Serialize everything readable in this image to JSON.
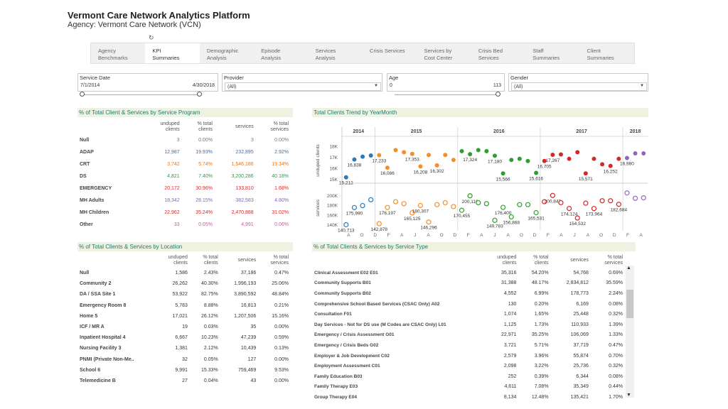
{
  "header": {
    "title": "Vermont Care Network Analytics Platform",
    "subtitle": "Agency: Vermont Care Network (VCN)",
    "reload_glyph": "↻"
  },
  "tabs": [
    {
      "label": "Agency\nBenchmarks",
      "active": false
    },
    {
      "label": "KPI\nSummaries",
      "active": true
    },
    {
      "label": "Demographic\nAnalysis",
      "active": false
    },
    {
      "label": "Episode\nAnalysis",
      "active": false
    },
    {
      "label": "Services\nAnalysis",
      "active": false
    },
    {
      "label": "Crisis Services",
      "active": false
    },
    {
      "label": "Services by\nCost Center",
      "active": false
    },
    {
      "label": "Crisis Bed\nServices",
      "active": false
    },
    {
      "label": "Staff\nSummaries",
      "active": false
    },
    {
      "label": "Client\nSummaries",
      "active": false
    }
  ],
  "filters": {
    "service_date": {
      "label": "Service Date",
      "start": "7/1/2014",
      "end": "4/30/2018"
    },
    "provider": {
      "label": "Provider",
      "value": "(All)"
    },
    "age": {
      "label": "Age",
      "min": "0",
      "max": "113"
    },
    "gender": {
      "label": "Gender",
      "value": "(All)"
    }
  },
  "program_table": {
    "title": "% of Total Client & Services by Service Program",
    "headers": [
      "unduped\nclients",
      "% total\nclients",
      "services",
      "% total\nservices"
    ],
    "rows": [
      {
        "label": "Null",
        "cells": [
          "3",
          "0.00%",
          "3",
          "0.00%"
        ],
        "color": "c-gray"
      },
      {
        "label": "ADAP",
        "cells": [
          "12,987",
          "19.93%",
          "232,895",
          "2.92%"
        ],
        "color": "c-blue"
      },
      {
        "label": "CRT",
        "cells": [
          "3,742",
          "5.74%",
          "1,546,186",
          "19.34%"
        ],
        "color": "c-orange"
      },
      {
        "label": "DS",
        "cells": [
          "4,821",
          "7.40%",
          "3,200,286",
          "40.18%"
        ],
        "color": "c-green"
      },
      {
        "label": "EMERGENCY",
        "cells": [
          "20,172",
          "30.96%",
          "133,810",
          "1.68%"
        ],
        "color": "c-red"
      },
      {
        "label": "MH Adults",
        "cells": [
          "18,342",
          "28.15%",
          "382,583",
          "4.80%"
        ],
        "color": "c-purple"
      },
      {
        "label": "MH Children",
        "cells": [
          "22,962",
          "35.24%",
          "2,470,888",
          "31.02%"
        ],
        "color": "c-red"
      },
      {
        "label": "Other",
        "cells": [
          "33",
          "0.05%",
          "4,991",
          "0.06%"
        ],
        "color": "c-pink"
      }
    ]
  },
  "location_table": {
    "title": "% of Total Clients & Services by Location",
    "headers": [
      "unduped\nclients",
      "% total\nclients",
      "services",
      "% total\nservices"
    ],
    "rows": [
      {
        "label": "Null",
        "cells": [
          "1,586",
          "2.43%",
          "37,186",
          "0.47%"
        ]
      },
      {
        "label": "Community 2",
        "cells": [
          "26,262",
          "40.30%",
          "1,996,193",
          "25.06%"
        ]
      },
      {
        "label": "DA / SSA Site 1",
        "cells": [
          "53,922",
          "82.75%",
          "3,890,592",
          "48.84%"
        ]
      },
      {
        "label": "Emergency Room 8",
        "cells": [
          "5,783",
          "8.88%",
          "16,813",
          "0.21%"
        ]
      },
      {
        "label": "Home 5",
        "cells": [
          "17,021",
          "26.12%",
          "1,207,506",
          "15.16%"
        ]
      },
      {
        "label": "ICF / MR A",
        "cells": [
          "19",
          "0.03%",
          "35",
          "0.00%"
        ]
      },
      {
        "label": "Inpatient Hospital 4",
        "cells": [
          "6,667",
          "10.23%",
          "47,239",
          "0.59%"
        ]
      },
      {
        "label": "Nursing Facility 3",
        "cells": [
          "1,381",
          "2.12%",
          "10,439",
          "0.13%"
        ]
      },
      {
        "label": "PNMI (Private Non-Me..",
        "cells": [
          "32",
          "0.05%",
          "127",
          "0.00%"
        ]
      },
      {
        "label": "School 6",
        "cells": [
          "9,991",
          "15.33%",
          "759,469",
          "9.53%"
        ]
      },
      {
        "label": "Telemedicine B",
        "cells": [
          "27",
          "0.04%",
          "43",
          "0.00%"
        ]
      }
    ]
  },
  "type_table": {
    "title": "% of Total Clients & Services by Service Type",
    "headers": [
      "unduped\nclients",
      "% total\nclients",
      "services",
      "% total\nservices"
    ],
    "rows": [
      {
        "label": "Clinical Assessment E02 E01",
        "cells": [
          "35,316",
          "54.20%",
          "54,768",
          "0.69%"
        ]
      },
      {
        "label": "Community Supports B01",
        "cells": [
          "31,388",
          "48.17%",
          "2,834,812",
          "35.59%"
        ]
      },
      {
        "label": "Community Supports B02",
        "cells": [
          "4,552",
          "6.99%",
          "178,773",
          "2.24%"
        ]
      },
      {
        "label": "Comprehensive School Based Services (CSAC Only) A02",
        "cells": [
          "130",
          "0.20%",
          "6,169",
          "0.08%"
        ]
      },
      {
        "label": "Consultation F01",
        "cells": [
          "1,074",
          "1.65%",
          "25,448",
          "0.32%"
        ]
      },
      {
        "label": "Day Services - Not for DS use (M Codes are CSAC Only) L01",
        "cells": [
          "1,125",
          "1.73%",
          "110,933",
          "1.39%"
        ]
      },
      {
        "label": "Emergency / Crisis Assessment G01",
        "cells": [
          "22,971",
          "35.25%",
          "106,069",
          "1.33%"
        ]
      },
      {
        "label": "Emergency / Crisis Beds G02",
        "cells": [
          "3,721",
          "5.71%",
          "37,719",
          "0.47%"
        ]
      },
      {
        "label": "Employer & Job Development C02",
        "cells": [
          "2,579",
          "3.96%",
          "55,874",
          "0.70%"
        ]
      },
      {
        "label": "Employment Assessment C01",
        "cells": [
          "2,098",
          "3.22%",
          "25,736",
          "0.32%"
        ]
      },
      {
        "label": "Family Education B03",
        "cells": [
          "252",
          "0.39%",
          "6,344",
          "0.08%"
        ]
      },
      {
        "label": "Family Therapy E03",
        "cells": [
          "4,611",
          "7.08%",
          "35,349",
          "0.44%"
        ]
      },
      {
        "label": "Group Therapy E04",
        "cells": [
          "8,134",
          "12.48%",
          "135,421",
          "1.70%"
        ]
      }
    ]
  },
  "chart_data": {
    "type": "scatter",
    "title": "Total Clients Trend by YearMonth",
    "years": [
      "2014",
      "2015",
      "2016",
      "2017",
      "2018"
    ],
    "month_ticks": [
      "A",
      "O",
      "D",
      "F",
      "A",
      "J",
      "A",
      "O",
      "D",
      "F",
      "A",
      "J",
      "A",
      "O",
      "D",
      "F",
      "A",
      "J",
      "A",
      "O",
      "D",
      "F",
      "A"
    ],
    "colors": {
      "2014": "#2f79b5",
      "2015": "#f28e2b",
      "2016": "#2ca02c",
      "2017": "#d62728",
      "2018": "#9467bd"
    },
    "top_panel": {
      "ylabel": "unduped clients",
      "yticks": [
        "18K",
        "17K",
        "16K",
        "15K"
      ],
      "ylim": [
        15000,
        18500
      ],
      "points": [
        {
          "i": 0,
          "y": 15212,
          "label": "15,212"
        },
        {
          "i": 1,
          "y": 16838,
          "label": "16,838"
        },
        {
          "i": 2,
          "y": 17100
        },
        {
          "i": 3,
          "y": 17200
        },
        {
          "i": 4,
          "y": 17233,
          "label": "17,233"
        },
        {
          "i": 5,
          "y": 16086,
          "label": "16,086"
        },
        {
          "i": 6,
          "y": 17700
        },
        {
          "i": 7,
          "y": 17500
        },
        {
          "i": 8,
          "y": 17353,
          "label": "17,353"
        },
        {
          "i": 9,
          "y": 16208,
          "label": "16,208"
        },
        {
          "i": 10,
          "y": 17250
        },
        {
          "i": 11,
          "y": 16302,
          "label": "16,302"
        },
        {
          "i": 12,
          "y": 17250
        },
        {
          "i": 13,
          "y": 16800
        },
        {
          "i": 14,
          "y": 17600
        },
        {
          "i": 15,
          "y": 17324,
          "label": "17,324"
        },
        {
          "i": 16,
          "y": 17700
        },
        {
          "i": 17,
          "y": 17600
        },
        {
          "i": 18,
          "y": 17180,
          "label": "17,180"
        },
        {
          "i": 19,
          "y": 15566,
          "label": "15,566"
        },
        {
          "i": 20,
          "y": 16800
        },
        {
          "i": 21,
          "y": 16900
        },
        {
          "i": 22,
          "y": 16700
        },
        {
          "i": 23,
          "y": 15616,
          "label": "15,616"
        },
        {
          "i": 24,
          "y": 16705,
          "label": "16,705"
        },
        {
          "i": 25,
          "y": 17267,
          "label": "17,267"
        },
        {
          "i": 26,
          "y": 17300
        },
        {
          "i": 27,
          "y": 16900
        },
        {
          "i": 28,
          "y": 17500
        },
        {
          "i": 29,
          "y": 15571,
          "label": "15,571"
        },
        {
          "i": 30,
          "y": 16900
        },
        {
          "i": 31,
          "y": 16400
        },
        {
          "i": 32,
          "y": 16252,
          "label": "16,252"
        },
        {
          "i": 33,
          "y": 16900
        },
        {
          "i": 34,
          "y": 16980,
          "label": "16,980"
        },
        {
          "i": 35,
          "y": 17400
        },
        {
          "i": 36,
          "y": 17400
        }
      ]
    },
    "bottom_panel": {
      "ylabel": "services",
      "yticks": [
        "200K",
        "180K",
        "160K",
        "140K"
      ],
      "ylim": [
        140000,
        210000
      ],
      "points": [
        {
          "i": 0,
          "y": 140713,
          "label": "140,713"
        },
        {
          "i": 1,
          "y": 175990,
          "label": "175,990"
        },
        {
          "i": 2,
          "y": 180000
        },
        {
          "i": 3,
          "y": 192000
        },
        {
          "i": 4,
          "y": 142878,
          "label": "142,878"
        },
        {
          "i": 5,
          "y": 176197,
          "label": "176,197"
        },
        {
          "i": 6,
          "y": 188000
        },
        {
          "i": 7,
          "y": 184000
        },
        {
          "i": 8,
          "y": 165125,
          "label": "165,125"
        },
        {
          "i": 9,
          "y": 180307,
          "label": "180,307"
        },
        {
          "i": 10,
          "y": 146296,
          "label": "146,296"
        },
        {
          "i": 11,
          "y": 182000
        },
        {
          "i": 12,
          "y": 186000
        },
        {
          "i": 13,
          "y": 178000
        },
        {
          "i": 14,
          "y": 170455,
          "label": "170,455"
        },
        {
          "i": 15,
          "y": 200116,
          "label": "200,116"
        },
        {
          "i": 16,
          "y": 186000
        },
        {
          "i": 17,
          "y": 184000
        },
        {
          "i": 18,
          "y": 149783,
          "label": "149,783"
        },
        {
          "i": 19,
          "y": 176400,
          "label": "176,400"
        },
        {
          "i": 20,
          "y": 156868,
          "label": "156,868"
        },
        {
          "i": 21,
          "y": 182000
        },
        {
          "i": 22,
          "y": 182000
        },
        {
          "i": 23,
          "y": 165531,
          "label": "165,531"
        },
        {
          "i": 24,
          "y": 188000
        },
        {
          "i": 25,
          "y": 200843,
          "label": "200,843"
        },
        {
          "i": 26,
          "y": 186000
        },
        {
          "i": 27,
          "y": 174124,
          "label": "174,124"
        },
        {
          "i": 28,
          "y": 154532,
          "label": "154,532"
        },
        {
          "i": 29,
          "y": 185000
        },
        {
          "i": 30,
          "y": 173964,
          "label": "173,964"
        },
        {
          "i": 31,
          "y": 190000
        },
        {
          "i": 32,
          "y": 190000
        },
        {
          "i": 33,
          "y": 182684,
          "label": "182,684"
        },
        {
          "i": 34,
          "y": 206000
        },
        {
          "i": 35,
          "y": 195000
        },
        {
          "i": 36,
          "y": 196000
        }
      ]
    },
    "year_of_index": [
      "2014",
      "2014",
      "2014",
      "2014",
      "2015",
      "2015",
      "2015",
      "2015",
      "2015",
      "2015",
      "2015",
      "2015",
      "2015",
      "2015",
      "2016",
      "2016",
      "2016",
      "2016",
      "2016",
      "2016",
      "2016",
      "2016",
      "2016",
      "2016",
      "2017",
      "2017",
      "2017",
      "2017",
      "2017",
      "2017",
      "2017",
      "2017",
      "2017",
      "2017",
      "2018",
      "2018",
      "2018"
    ]
  }
}
